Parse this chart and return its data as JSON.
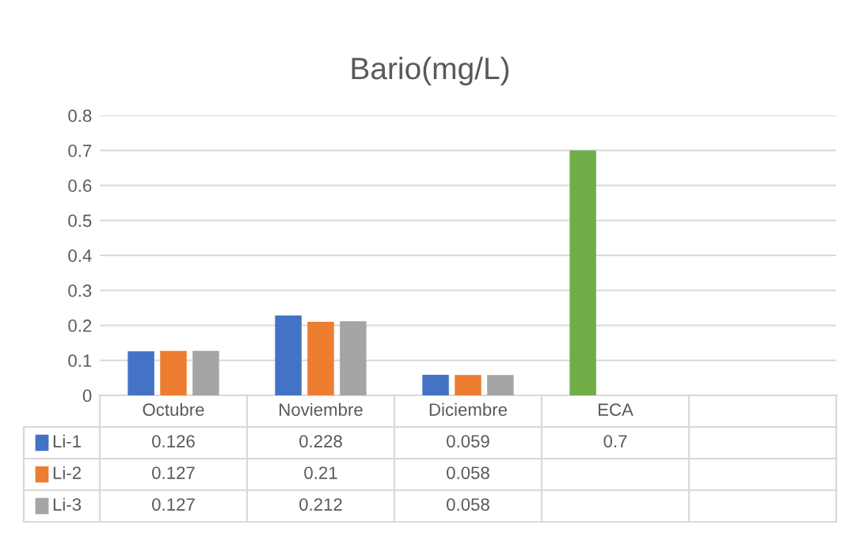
{
  "chart_data": {
    "type": "bar",
    "title": "Bario(mg/L)",
    "categories": [
      "Octubre",
      "Noviembre",
      "Diciembre",
      "ECA",
      null
    ],
    "series": [
      {
        "name": "Li-1",
        "color": "#4472c4",
        "colors": [
          "#4472c4",
          "#4472c4",
          "#4472c4",
          "#70ad47",
          null
        ],
        "values": [
          0.126,
          0.228,
          0.059,
          0.7,
          null
        ]
      },
      {
        "name": "Li-2",
        "color": "#ed7d31",
        "values": [
          0.127,
          0.21,
          0.058,
          null,
          null
        ]
      },
      {
        "name": "Li-3",
        "color": "#a5a5a5",
        "values": [
          0.127,
          0.212,
          0.058,
          null,
          null
        ]
      }
    ],
    "ylim": [
      0,
      0.8
    ],
    "yticks": [
      0,
      0.1,
      0.2,
      0.3,
      0.4,
      0.5,
      0.6,
      0.7,
      0.8
    ],
    "grid": "y",
    "legend": "bottom",
    "data_labels": true
  }
}
